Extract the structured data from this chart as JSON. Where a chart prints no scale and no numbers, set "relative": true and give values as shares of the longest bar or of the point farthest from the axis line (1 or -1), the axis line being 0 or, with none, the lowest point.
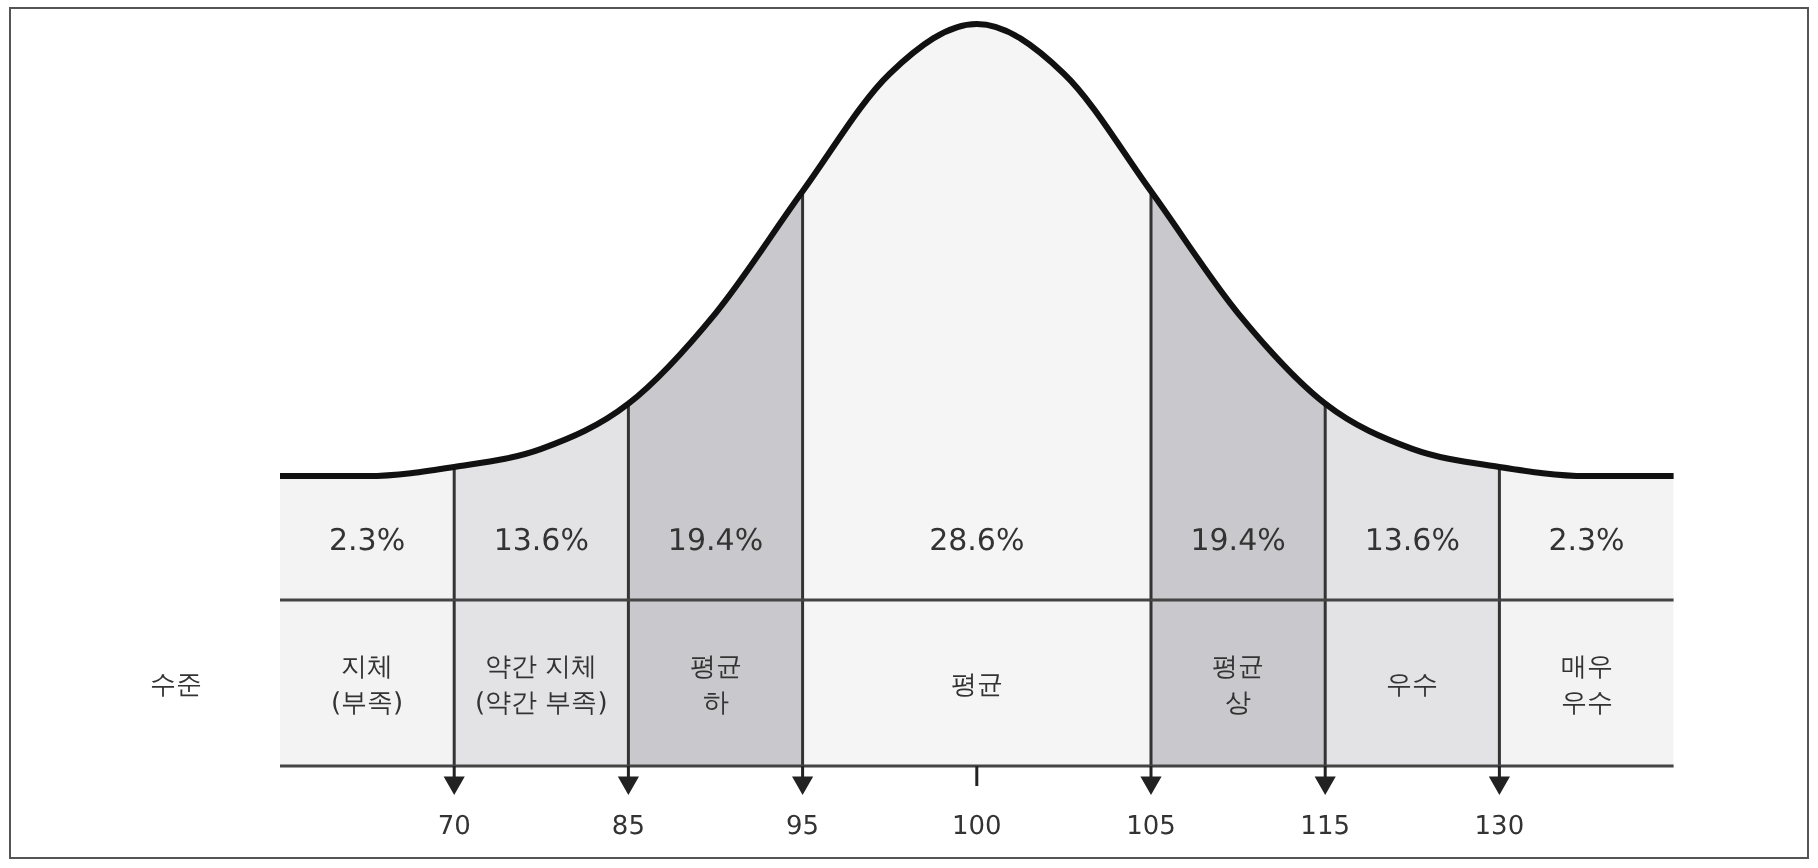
{
  "chart_data": [
    {
      "type": "line",
      "relative": true,
      "categories": [
        null,
        null,
        "70",
        null,
        "85",
        null,
        "95",
        null,
        "100",
        null,
        "105",
        null,
        "115",
        null,
        "130",
        null,
        null
      ],
      "series": [
        {
          "color": "#111111",
          "values": [
            0,
            0,
            0.02,
            0.06,
            0.16,
            0.36,
            0.63,
            0.89,
            1,
            0.89,
            0.63,
            0.36,
            0.16,
            0.06,
            0.02,
            0,
            0
          ]
        }
      ]
    },
    {
      "type": "other",
      "ylabel": "수준",
      "categories": [
        "지체\n(부족)",
        "약간 지체\n(약간 부족)",
        "평균\n하",
        "평균",
        "평균\n상",
        "우수",
        "매우\n우수"
      ],
      "annotations": [
        "2.3%",
        "13.6%",
        "19.4%",
        "28.6%",
        "19.4%",
        "13.6%",
        "2.3%"
      ],
      "colors": [
        "#f3f3f3",
        "#e3e3e6",
        "#c9c9cd",
        "#f5f5f5",
        "#c9c9cd",
        "#e3e3e6",
        "#f3f3f3"
      ]
    }
  ]
}
